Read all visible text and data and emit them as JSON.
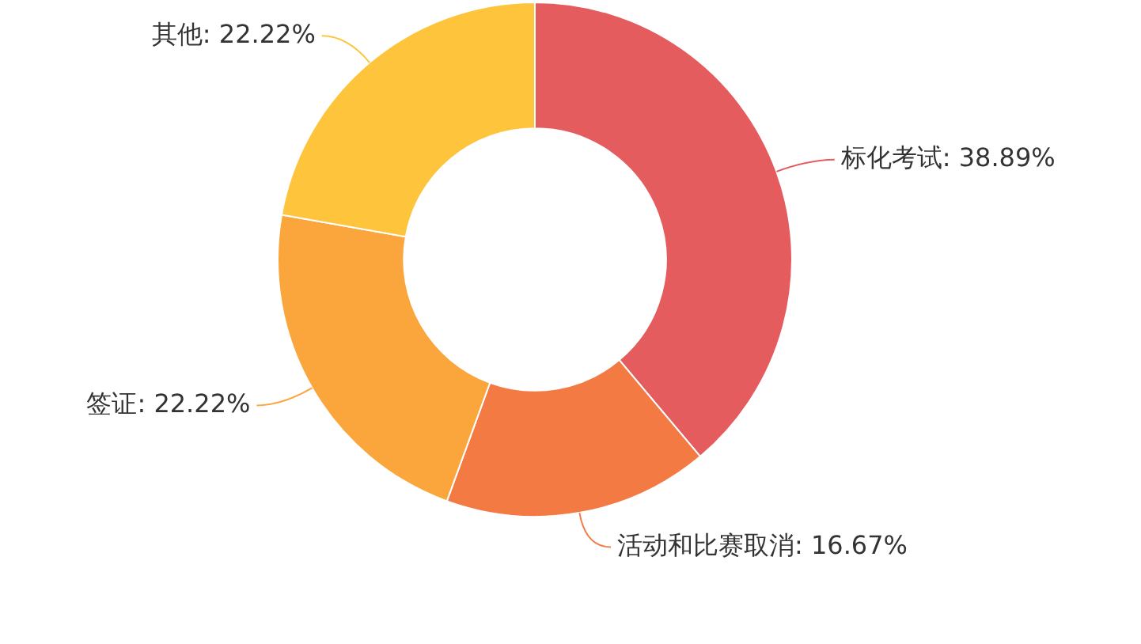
{
  "chart_data": {
    "type": "donut",
    "categories": [
      "标化考试",
      "活动和比赛取消",
      "签证",
      "其他"
    ],
    "values": [
      38.89,
      16.67,
      22.22,
      22.22
    ],
    "colors": [
      "#e55c5f",
      "#f47a44",
      "#fba63d",
      "#fdc43c"
    ],
    "value_labels": [
      ": 38.89%",
      ": 16.67%",
      ": 22.22%",
      ": 22.22%"
    ],
    "legend": false
  }
}
